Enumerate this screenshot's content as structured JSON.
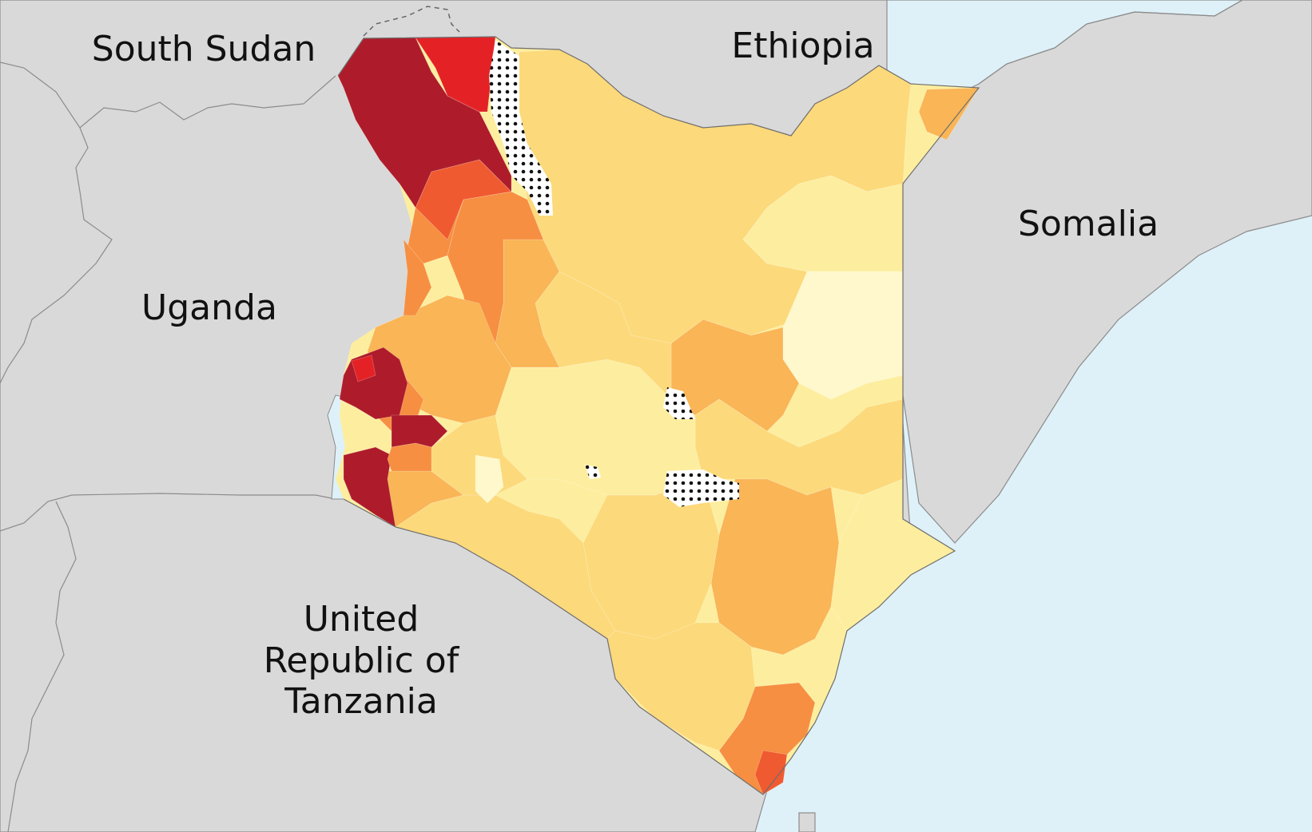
{
  "labels": {
    "south_sudan": "South Sudan",
    "ethiopia": "Ethiopia",
    "somalia": "Somalia",
    "uganda": "Uganda",
    "tanzania_line1": "United",
    "tanzania_line2": "Republic of",
    "tanzania_line3": "Tanzania"
  },
  "colors": {
    "land_neighbors": "#d9d9d9",
    "water": "#dff1f8",
    "borders": "#8c8c8c",
    "class_1_lightest": "#fef8cc",
    "class_2": "#fdee9f",
    "class_3": "#fcd97a",
    "class_4": "#f9b556",
    "class_5": "#f68f41",
    "class_6": "#f05a30",
    "class_7": "#e42226",
    "class_8_darkest": "#ae1c2b",
    "no_data_pattern": "dotted black on white"
  }
}
